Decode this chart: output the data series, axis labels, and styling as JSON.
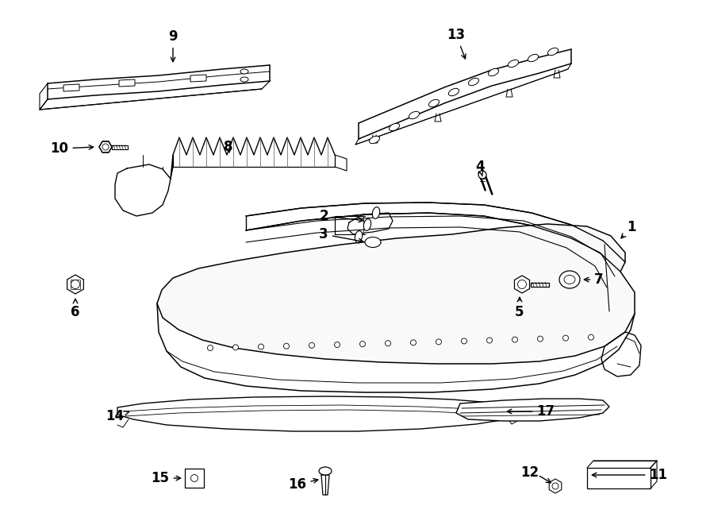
{
  "bg_color": "#ffffff",
  "lc": "#000000",
  "fs": 12,
  "alw": 1.0,
  "lw": 1.0
}
